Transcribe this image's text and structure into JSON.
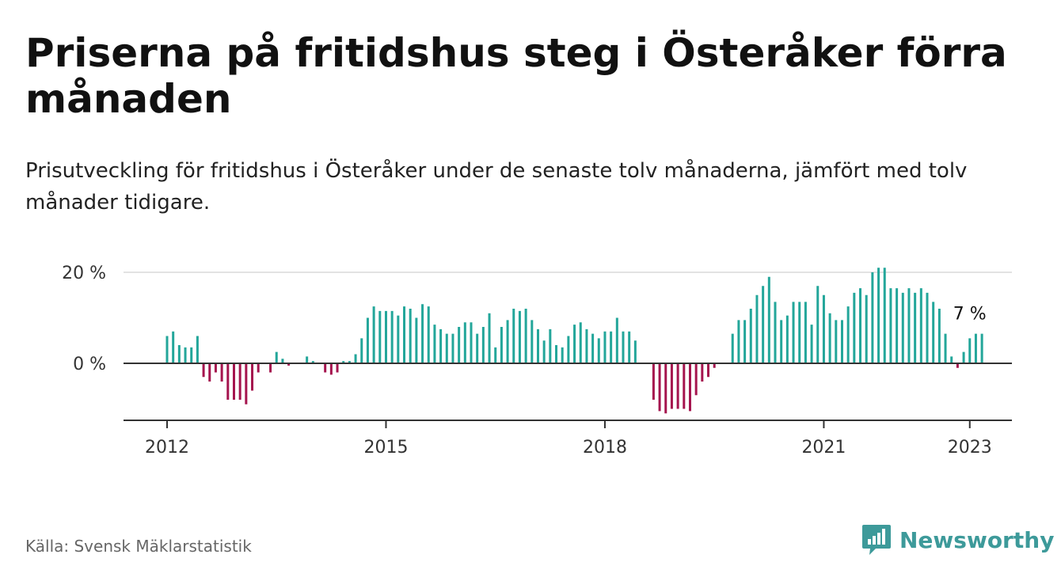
{
  "header": {
    "title": "Priserna på fritidshus steg i Österåker förra månaden",
    "subtitle": "Prisutveckling för fritidshus i Österåker under de senaste tolv månaderna, jämfört med tolv månader tidigare."
  },
  "footer": {
    "source": "Källa: Svensk Mäklarstatistik",
    "brand": "Newsworthy"
  },
  "colors": {
    "positive": "#23a69a",
    "negative": "#a5144e",
    "grid": "#d9d9d9",
    "axis": "#333333"
  },
  "chart_data": {
    "type": "bar",
    "title": "Priserna på fritidshus steg i Österåker förra månaden",
    "subtitle": "Prisutveckling för fritidshus i Österåker under de senaste tolv månaderna, jämfört med tolv månader tidigare.",
    "xlabel": "",
    "ylabel": "",
    "grid": true,
    "x_ticks": [
      "2012",
      "2015",
      "2018",
      "2021",
      "2023"
    ],
    "y_ticks": [
      "20 %",
      "0 %"
    ],
    "y_tick_values": [
      20,
      0
    ],
    "ylim": [
      -13,
      22
    ],
    "annotation": {
      "text": "7 %",
      "index": 132
    },
    "x_start": "2012-01",
    "values": [
      6,
      7,
      4,
      3.5,
      3.5,
      6,
      -3,
      -4,
      -2,
      -4,
      -8,
      -8,
      -8,
      -9,
      -6,
      -2,
      0,
      -2,
      2.5,
      1,
      -0.5,
      0,
      0,
      1.5,
      0.5,
      0,
      -2,
      -2.5,
      -2,
      0.5,
      0.5,
      2,
      5.5,
      10,
      12.5,
      11.5,
      11.5,
      11.5,
      10.5,
      12.5,
      12,
      10,
      13,
      12.5,
      8.5,
      7.5,
      6.5,
      6.5,
      8,
      9,
      9,
      6.5,
      8,
      11,
      3.5,
      8,
      9.5,
      12,
      11.5,
      12,
      9.5,
      7.5,
      5,
      7.5,
      4,
      3.5,
      6,
      8.5,
      9,
      7.5,
      6.5,
      5.5,
      7,
      7,
      10,
      7,
      7,
      5,
      0,
      0,
      -8,
      -10.5,
      -11,
      -10,
      -10,
      -10,
      -10.5,
      -7,
      -4,
      -3,
      -1,
      0,
      0,
      6.5,
      9.5,
      9.5,
      12,
      15,
      17,
      19,
      13.5,
      9.5,
      10.5,
      13.5,
      13.5,
      13.5,
      8.5,
      17,
      15,
      11,
      9.5,
      9.5,
      12.5,
      15.5,
      16.5,
      15,
      20,
      21,
      21,
      16.5,
      16.5,
      15.5,
      16.5,
      15.5,
      16.5,
      15.5,
      13.5,
      12,
      6.5,
      1.5,
      -1,
      2.5,
      5.5,
      6.5,
      6.5
    ]
  }
}
